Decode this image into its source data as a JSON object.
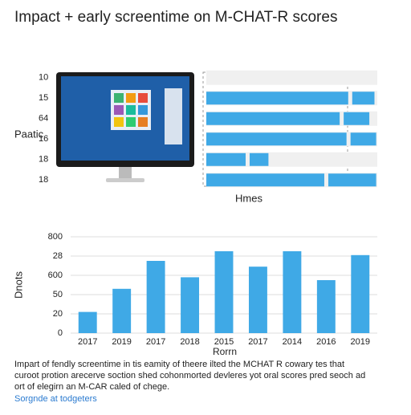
{
  "title": "Impact + early screentime on M-CHAT-R scores",
  "chart_data": [
    {
      "type": "hbar",
      "categories": [
        "10",
        "15",
        "64",
        "16",
        "18",
        "18"
      ],
      "ylabel": "Paatic",
      "xlabel": "Hmes",
      "xlim": [
        0,
        100
      ],
      "series": [
        {
          "color": "#3fa9e6",
          "values": [
            0,
            83,
            78,
            82,
            23,
            69
          ]
        },
        {
          "color": "#3fa9e6",
          "values": [
            0,
            13,
            15,
            15,
            11,
            28
          ]
        }
      ]
    },
    {
      "type": "bar",
      "categories": [
        "2017",
        "2019",
        "2017",
        "2018",
        "2015",
        "2017",
        "2014",
        "2016",
        "2019"
      ],
      "values": [
        1.1,
        2.3,
        3.75,
        2.9,
        4.25,
        3.45,
        4.25,
        2.75,
        4.05
      ],
      "color": "#3fa9e6",
      "ylabel": "Dnots",
      "xlabel": "Rorrn",
      "ylim": [
        0,
        5
      ],
      "yticks": [
        {
          "value": 0,
          "label": "0"
        },
        {
          "value": 1,
          "label": "20"
        },
        {
          "value": 2,
          "label": "50"
        },
        {
          "value": 3,
          "label": "600"
        },
        {
          "value": 4,
          "label": "28"
        },
        {
          "value": 5,
          "label": "800"
        }
      ],
      "grid": true
    }
  ],
  "caption": [
    "Impart of fendly screentime in tis eamity of theere ilted the MCHAT R cowary tes that",
    "curoot protion arecerve soction shed cohonmorted devleres yot oral scores pred seoch ad",
    "ort of elegirn an M-CAR caled of chege."
  ],
  "link": "Sorgnde at todgeters"
}
